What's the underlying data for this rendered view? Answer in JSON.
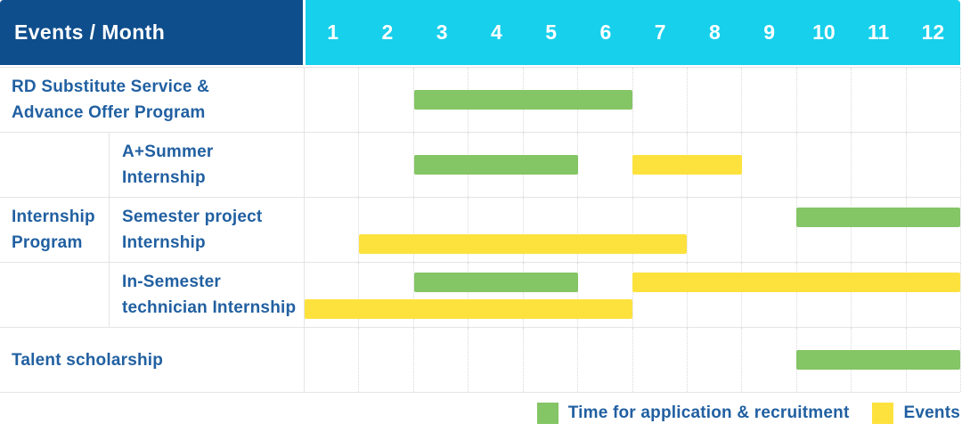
{
  "header": {
    "title": "Events / Month",
    "months": [
      "1",
      "2",
      "3",
      "4",
      "5",
      "6",
      "7",
      "8",
      "9",
      "10",
      "11",
      "12"
    ]
  },
  "colors": {
    "header_navy": "#0e4e8c",
    "header_cyan": "#17d0ec",
    "bar_green": "#84c565",
    "bar_yellow": "#fde23e",
    "text_blue": "#2160a1"
  },
  "legend": {
    "items": [
      {
        "swatch": "green",
        "label": "Time for application & recruitment"
      },
      {
        "swatch": "yellow",
        "label": "Events"
      }
    ]
  },
  "chart_data": {
    "type": "bar",
    "variant": "gantt-schedule",
    "title": "Events / Month",
    "x_categories": [
      "1",
      "2",
      "3",
      "4",
      "5",
      "6",
      "7",
      "8",
      "9",
      "10",
      "11",
      "12"
    ],
    "x_range": [
      1,
      12
    ],
    "legend": [
      {
        "type": "application",
        "label": "Time for application & recruitment",
        "color": "#84c565"
      },
      {
        "type": "event",
        "label": "Events",
        "color": "#fde23e"
      }
    ],
    "group_label": "Internship Program",
    "group_label_lines": [
      "Internship",
      "Program"
    ],
    "rows": [
      {
        "label": "RD Substitute Service & Advance Offer Program",
        "label_lines": [
          "RD Substitute Service &",
          "Advance Offer Program"
        ],
        "group": null,
        "lanes": [
          [
            {
              "type": "application",
              "start_month": 3,
              "end_month": 6
            }
          ]
        ]
      },
      {
        "label": "A+Summer Internship",
        "label_lines": [
          "A+Summer",
          "Internship"
        ],
        "group": "Internship Program",
        "lanes": [
          [
            {
              "type": "application",
              "start_month": 3,
              "end_month": 5
            },
            {
              "type": "event",
              "start_month": 7,
              "end_month": 8
            }
          ]
        ]
      },
      {
        "label": "Semester project Internship",
        "label_lines": [
          "Semester project",
          "Internship"
        ],
        "group": "Internship Program",
        "lanes": [
          [
            {
              "type": "application",
              "start_month": 10,
              "end_month": 12
            }
          ],
          [
            {
              "type": "event",
              "start_month": 2,
              "end_month": 7
            }
          ]
        ]
      },
      {
        "label": "In-Semester technician Internship",
        "label_lines": [
          "In-Semester",
          "technician Internship"
        ],
        "group": "Internship Program",
        "lanes": [
          [
            {
              "type": "application",
              "start_month": 3,
              "end_month": 5
            },
            {
              "type": "event",
              "start_month": 7,
              "end_month": 12
            }
          ],
          [
            {
              "type": "event",
              "start_month": 1,
              "end_month": 6
            }
          ]
        ]
      },
      {
        "label": "Talent scholarship",
        "label_lines": [
          "Talent scholarship"
        ],
        "group": null,
        "lanes": [
          [
            {
              "type": "application",
              "start_month": 10,
              "end_month": 12
            }
          ]
        ]
      }
    ]
  }
}
